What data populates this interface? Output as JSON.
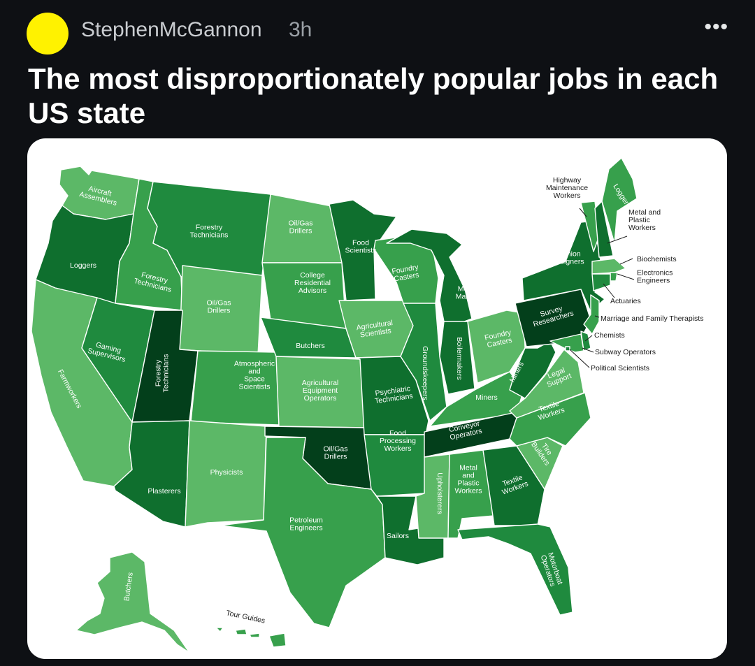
{
  "post": {
    "username": "StephenMcGannon",
    "time": "3h",
    "more": "•••",
    "title": "The most disproportionately popular jobs in each US state"
  },
  "colors": {
    "light": "#5cb867",
    "medium": "#37a04c",
    "dark": "#1f8a3e",
    "darker": "#0f6f2e",
    "darkest": "#033f1b"
  },
  "map": {
    "states": [
      {
        "code": "WA",
        "job": "Aircraft Assemblers",
        "shade": "light"
      },
      {
        "code": "OR",
        "job": "Loggers",
        "shade": "darker"
      },
      {
        "code": "CA",
        "job": "Farmworkers",
        "shade": "light"
      },
      {
        "code": "ID",
        "job": "Forestry Technicians",
        "shade": "medium"
      },
      {
        "code": "NV",
        "job": "Gaming Supervisors",
        "shade": "dark"
      },
      {
        "code": "MT",
        "job": "Forestry Technicians",
        "shade": "dark"
      },
      {
        "code": "WY",
        "job": "Oil/Gas Drillers",
        "shade": "light"
      },
      {
        "code": "UT",
        "job": "Forestry Technicians",
        "shade": "darkest"
      },
      {
        "code": "AZ",
        "job": "Plasterers",
        "shade": "darker"
      },
      {
        "code": "CO",
        "job": "Atmospheric and Space Scientists",
        "shade": "medium"
      },
      {
        "code": "NM",
        "job": "Physicists",
        "shade": "light"
      },
      {
        "code": "ND",
        "job": "Oil/Gas Drillers",
        "shade": "light"
      },
      {
        "code": "SD",
        "job": "College Residential Advisors",
        "shade": "medium"
      },
      {
        "code": "NE",
        "job": "Butchers",
        "shade": "dark"
      },
      {
        "code": "KS",
        "job": "Agricultural Equipment Operators",
        "shade": "light"
      },
      {
        "code": "OK",
        "job": "Oil/Gas Drillers",
        "shade": "darkest"
      },
      {
        "code": "TX",
        "job": "Petroleum Engineers",
        "shade": "medium"
      },
      {
        "code": "MN",
        "job": "Food Scientists",
        "shade": "darker"
      },
      {
        "code": "IA",
        "job": "Agricultural Scientists",
        "shade": "light"
      },
      {
        "code": "MO",
        "job": "Psychiatric Technicians",
        "shade": "darker"
      },
      {
        "code": "AR",
        "job": "Food Processing Workers",
        "shade": "dark"
      },
      {
        "code": "LA",
        "job": "Sailors",
        "shade": "darker"
      },
      {
        "code": "WI",
        "job": "Foundry Casters",
        "shade": "medium"
      },
      {
        "code": "IL",
        "job": "Groundskeepers",
        "shade": "dark"
      },
      {
        "code": "MI",
        "job": "Model Makers",
        "shade": "darker"
      },
      {
        "code": "IN",
        "job": "Boilermakers",
        "shade": "darker"
      },
      {
        "code": "OH",
        "job": "Foundry Casters",
        "shade": "light"
      },
      {
        "code": "KY",
        "job": "Miners",
        "shade": "medium"
      },
      {
        "code": "TN",
        "job": "Conveyor Operators",
        "shade": "darkest"
      },
      {
        "code": "MS",
        "job": "Upholsterers",
        "shade": "light"
      },
      {
        "code": "AL",
        "job": "Metal and Plastic Workers",
        "shade": "medium"
      },
      {
        "code": "GA",
        "job": "Textile Workers",
        "shade": "darker"
      },
      {
        "code": "FL",
        "job": "Motorboat Operators",
        "shade": "dark"
      },
      {
        "code": "SC",
        "job": "Tire Builders",
        "shade": "light"
      },
      {
        "code": "NC",
        "job": "Textile Workers",
        "shade": "medium"
      },
      {
        "code": "VA",
        "job": "Legal Support",
        "shade": "light"
      },
      {
        "code": "WV",
        "job": "Miners",
        "shade": "darker"
      },
      {
        "code": "PA",
        "job": "Survey Researchers",
        "shade": "darkest"
      },
      {
        "code": "NY",
        "job": "Fashion Designers",
        "shade": "darker"
      },
      {
        "code": "VT",
        "job": "Highway Maintenance Workers",
        "shade": "medium"
      },
      {
        "code": "NH",
        "job": "Metal and Plastic Workers",
        "shade": "darker"
      },
      {
        "code": "ME",
        "job": "Loggers",
        "shade": "medium"
      },
      {
        "code": "MA",
        "job": "Biochemists",
        "shade": "light"
      },
      {
        "code": "RI",
        "job": "Electronics Engineers",
        "shade": "medium"
      },
      {
        "code": "CT",
        "job": "Actuaries",
        "shade": "dark"
      },
      {
        "code": "NJ",
        "job": "Marriage and Family Therapists",
        "shade": "medium"
      },
      {
        "code": "DE",
        "job": "Chemists",
        "shade": "dark"
      },
      {
        "code": "MD",
        "job": "Subway Operators",
        "shade": "medium"
      },
      {
        "code": "DC",
        "job": "Political Scientists",
        "shade": "dark"
      },
      {
        "code": "AK",
        "job": "Butchers",
        "shade": "light"
      },
      {
        "code": "HI",
        "job": "Tour Guides",
        "shade": "medium"
      }
    ],
    "labels": {
      "WA": [
        "Aircraft",
        "Assemblers"
      ],
      "OR": [
        "Loggers"
      ],
      "CA": [
        "Farmworkers"
      ],
      "ID": [
        "Forestry",
        "Technicians"
      ],
      "NV": [
        "Gaming",
        "Supervisors"
      ],
      "MT": [
        "Forestry",
        "Technicians"
      ],
      "WY": [
        "Oil/Gas",
        "Drillers"
      ],
      "UT": [
        "Forestry",
        "Technicians"
      ],
      "AZ": [
        "Plasterers"
      ],
      "CO": [
        "Atmospheric",
        "and",
        "Space",
        "Scientists"
      ],
      "NM": [
        "Physicists"
      ],
      "ND": [
        "Oil/Gas",
        "Drillers"
      ],
      "SD": [
        "College",
        "Residential",
        "Advisors"
      ],
      "NE": [
        "Butchers"
      ],
      "KS": [
        "Agricultural",
        "Equipment",
        "Operators"
      ],
      "OK": [
        "Oil/Gas",
        "Drillers"
      ],
      "TX": [
        "Petroleum",
        "Engineers"
      ],
      "MN": [
        "Food",
        "Scientists"
      ],
      "IA": [
        "Agricultural",
        "Scientists"
      ],
      "MO": [
        "Psychiatric",
        "Technicians"
      ],
      "AR": [
        "Food",
        "Processing",
        "Workers"
      ],
      "LA": [
        "Sailors"
      ],
      "WI": [
        "Foundry",
        "Casters"
      ],
      "IL": [
        "Groundskeepers"
      ],
      "MI": [
        "Model",
        "Makers"
      ],
      "IN": [
        "Boilermakers"
      ],
      "OH": [
        "Foundry",
        "Casters"
      ],
      "KY": [
        "Miners"
      ],
      "TN": [
        "Conveyor",
        "Operators"
      ],
      "MS": [
        "Upholsterers"
      ],
      "AL": [
        "Metal",
        "and",
        "Plastic",
        "Workers"
      ],
      "GA": [
        "Textile",
        "Workers"
      ],
      "FL": [
        "Motorboat",
        "Operators"
      ],
      "SC": [
        "Tire",
        "Builders"
      ],
      "NC": [
        "Textile",
        "Workers"
      ],
      "VA": [
        "Legal",
        "Support"
      ],
      "WV": [
        "Miners"
      ],
      "PA": [
        "Survey",
        "Researchers"
      ],
      "NY": [
        "Fashion",
        "Designers"
      ],
      "VT": [
        "Highway",
        "Maintenance",
        "Workers"
      ],
      "NH": [
        "Metal and",
        "Plastic",
        "Workers"
      ],
      "ME": [
        "Loggers"
      ],
      "MA": [
        "Biochemists"
      ],
      "RI": [
        "Electronics",
        "Engineers"
      ],
      "CT": [
        "Actuaries"
      ],
      "NJ": [
        "Marriage and Family Therapists"
      ],
      "DE": [
        "Chemists"
      ],
      "MD": [
        "Subway Operators"
      ],
      "DC": [
        "Political Scientists"
      ],
      "AK": [
        "Butchers"
      ],
      "HI": [
        "Tour Guides"
      ]
    }
  }
}
